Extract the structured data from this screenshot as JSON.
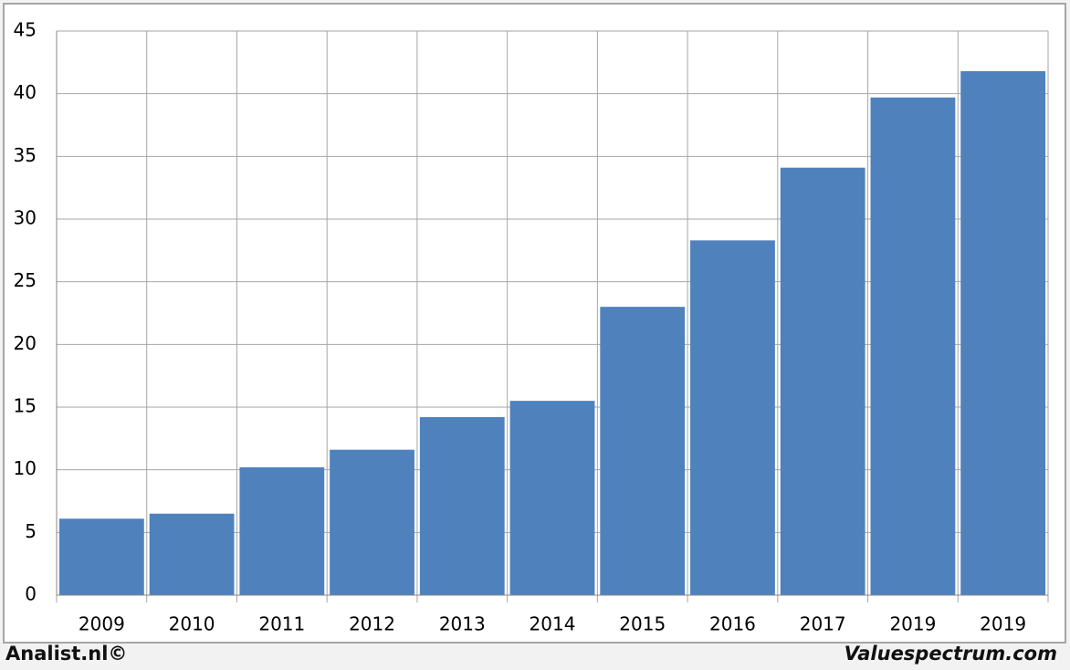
{
  "chart_data": {
    "type": "bar",
    "categories": [
      "2009",
      "2010",
      "2011",
      "2012",
      "2013",
      "2014",
      "2015",
      "2016",
      "2017",
      "2019",
      "2019"
    ],
    "values": [
      6.1,
      6.5,
      10.2,
      11.6,
      14.2,
      15.5,
      23.0,
      28.3,
      34.1,
      39.7,
      41.8
    ],
    "color": "#4f81bd",
    "ylim": [
      0,
      45
    ],
    "yticks": [
      0,
      5,
      10,
      15,
      20,
      25,
      30,
      35,
      40,
      45
    ],
    "grid": true
  },
  "footer": {
    "left": "Analist.nl©",
    "right": "Valuespectrum.com"
  }
}
